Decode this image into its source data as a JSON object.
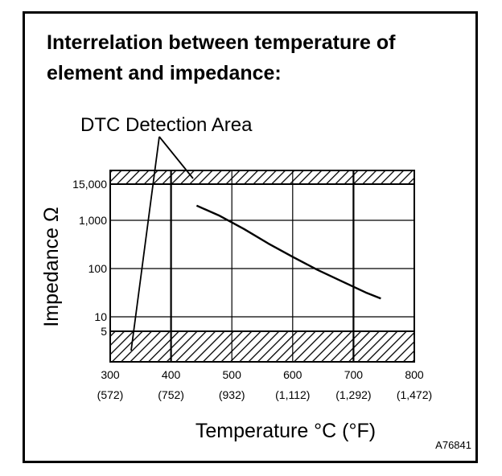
{
  "chart_data": {
    "type": "line",
    "title": "Interrelation between temperature of element and impedance:",
    "xlabel": "Temperature °C (°F)",
    "ylabel": "Impedance Ω",
    "xlim": [
      300,
      800
    ],
    "x_ticks": [
      {
        "value": 300,
        "label": "300",
        "sub": "(572)"
      },
      {
        "value": 400,
        "label": "400",
        "sub": "(752)"
      },
      {
        "value": 500,
        "label": "500",
        "sub": "(932)"
      },
      {
        "value": 600,
        "label": "600",
        "sub": "(1,112)"
      },
      {
        "value": 700,
        "label": "700",
        "sub": "(1,292)"
      },
      {
        "value": 800,
        "label": "800",
        "sub": "(1,472)"
      }
    ],
    "y_scale": "log",
    "y_ticks": [
      {
        "value": 5,
        "label": "5"
      },
      {
        "value": 10,
        "label": "10"
      },
      {
        "value": 100,
        "label": "100"
      },
      {
        "value": 1000,
        "label": "1,000"
      },
      {
        "value": 15000,
        "label": "15,000"
      }
    ],
    "series": [
      {
        "x": [
          442,
          480,
          520,
          560,
          600,
          640,
          680,
          720,
          745
        ],
        "y": [
          3000,
          1400,
          660,
          330,
          175,
          95,
          55,
          32,
          24
        ]
      }
    ],
    "shaded_bands": [
      {
        "y_from": 15000,
        "y_to": 28000
      },
      {
        "y_from": 1.8,
        "y_to": 5
      }
    ],
    "annotation": "DTC Detection Area",
    "code": "A76841"
  }
}
